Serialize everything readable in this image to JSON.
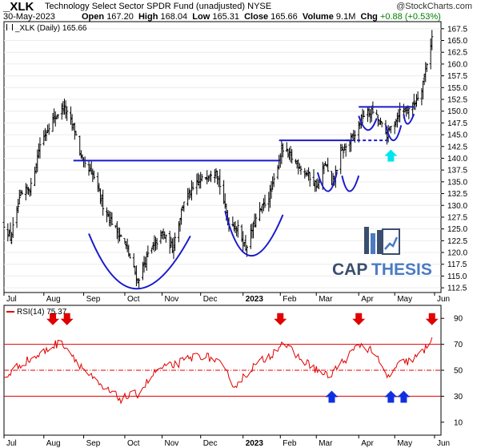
{
  "header": {
    "symbol": "_XLK",
    "fund_name": "Technology Select Sector SPDR Fund (unadjusted)",
    "exchange": "NYSE",
    "watermark": "@StockCharts.com",
    "date": "30-May-2023",
    "open_label": "Open",
    "open": "167.20",
    "high_label": "High",
    "high": "168.04",
    "low_label": "Low",
    "low": "165.31",
    "close_label": "Close",
    "close": "165.66",
    "volume_label": "Volume",
    "volume": "9.1M",
    "chg_label": "Chg",
    "chg": "+0.88 (+0.53%)"
  },
  "price_legend": "_XLK (Daily) 165.66",
  "rsi_legend": "RSI(14) 75.37",
  "logo_text": {
    "cap": "CAP",
    "thesis": "THESIS"
  },
  "colors": {
    "bars": "#000000",
    "annotation_blue": "#1a1acc",
    "rsi_line": "#e00000",
    "arrow_red": "#e00000",
    "arrow_blue": "#1030e0",
    "arrow_cyan": "#00e5f0",
    "logo_dark": "#3a4e6e",
    "logo_blue": "#4a7bc4"
  },
  "chart_data": [
    {
      "type": "ohlc",
      "series": "_XLK (Daily)",
      "x_tick_labels": [
        "Jul",
        "Aug",
        "Sep",
        "Oct",
        "Nov",
        "Dec",
        "2023",
        "Feb",
        "Mar",
        "Apr",
        "May",
        "Jun"
      ],
      "y_ticks": [
        "167.5",
        "165.0",
        "162.5",
        "160.0",
        "157.5",
        "155.0",
        "152.5",
        "150.0",
        "147.5",
        "145.0",
        "142.5",
        "140.0",
        "137.5",
        "135.0",
        "132.5",
        "130.0",
        "127.5",
        "125.0",
        "122.5",
        "120.0",
        "117.5",
        "115.0",
        "112.5"
      ],
      "ylim": [
        111.5,
        169
      ],
      "anchor_closes": [
        {
          "date": "2022-07-01",
          "close": 126
        },
        {
          "date": "2022-07-06",
          "close": 123
        },
        {
          "date": "2022-07-14",
          "close": 132
        },
        {
          "date": "2022-07-22",
          "close": 134
        },
        {
          "date": "2022-07-29",
          "close": 143
        },
        {
          "date": "2022-08-05",
          "close": 147
        },
        {
          "date": "2022-08-16",
          "close": 151
        },
        {
          "date": "2022-08-25",
          "close": 146
        },
        {
          "date": "2022-08-31",
          "close": 139
        },
        {
          "date": "2022-09-09",
          "close": 136
        },
        {
          "date": "2022-09-16",
          "close": 130
        },
        {
          "date": "2022-09-26",
          "close": 125
        },
        {
          "date": "2022-10-03",
          "close": 122
        },
        {
          "date": "2022-10-13",
          "close": 114
        },
        {
          "date": "2022-10-20",
          "close": 119
        },
        {
          "date": "2022-11-01",
          "close": 124
        },
        {
          "date": "2022-11-09",
          "close": 121
        },
        {
          "date": "2022-11-18",
          "close": 131
        },
        {
          "date": "2022-11-30",
          "close": 135
        },
        {
          "date": "2022-12-13",
          "close": 138
        },
        {
          "date": "2022-12-22",
          "close": 127
        },
        {
          "date": "2022-12-30",
          "close": 125
        },
        {
          "date": "2023-01-05",
          "close": 121
        },
        {
          "date": "2023-01-13",
          "close": 127
        },
        {
          "date": "2023-01-25",
          "close": 133
        },
        {
          "date": "2023-02-02",
          "close": 142
        },
        {
          "date": "2023-02-10",
          "close": 140
        },
        {
          "date": "2023-02-21",
          "close": 137
        },
        {
          "date": "2023-03-02",
          "close": 134
        },
        {
          "date": "2023-03-08",
          "close": 139
        },
        {
          "date": "2023-03-13",
          "close": 134
        },
        {
          "date": "2023-03-20",
          "close": 141
        },
        {
          "date": "2023-03-31",
          "close": 145
        },
        {
          "date": "2023-04-06",
          "close": 149
        },
        {
          "date": "2023-04-14",
          "close": 150
        },
        {
          "date": "2023-04-25",
          "close": 145
        },
        {
          "date": "2023-05-05",
          "close": 150
        },
        {
          "date": "2023-05-15",
          "close": 151
        },
        {
          "date": "2023-05-22",
          "close": 155
        },
        {
          "date": "2023-05-25",
          "close": 159
        },
        {
          "date": "2023-05-30",
          "close": 165.66
        }
      ]
    },
    {
      "type": "line",
      "series": "RSI(14)",
      "x_tick_labels": [
        "Jul",
        "Aug",
        "Sep",
        "Oct",
        "Nov",
        "Dec",
        "2023",
        "Feb",
        "Mar",
        "Apr",
        "May",
        "Jun"
      ],
      "y_ticks": [
        "90",
        "70",
        "50",
        "30",
        "10"
      ],
      "ylim": [
        0,
        100
      ],
      "reference_lines": [
        70,
        50,
        30
      ],
      "anchor_values": [
        {
          "date": "2022-07-01",
          "value": 44
        },
        {
          "date": "2022-07-14",
          "value": 55
        },
        {
          "date": "2022-07-29",
          "value": 62
        },
        {
          "date": "2022-08-10",
          "value": 70
        },
        {
          "date": "2022-08-16",
          "value": 71
        },
        {
          "date": "2022-08-31",
          "value": 52
        },
        {
          "date": "2022-09-13",
          "value": 38
        },
        {
          "date": "2022-09-30",
          "value": 28
        },
        {
          "date": "2022-10-13",
          "value": 32
        },
        {
          "date": "2022-10-28",
          "value": 50
        },
        {
          "date": "2022-11-10",
          "value": 54
        },
        {
          "date": "2022-11-30",
          "value": 62
        },
        {
          "date": "2022-12-13",
          "value": 58
        },
        {
          "date": "2022-12-28",
          "value": 38
        },
        {
          "date": "2023-01-10",
          "value": 52
        },
        {
          "date": "2023-01-26",
          "value": 63
        },
        {
          "date": "2023-02-02",
          "value": 72
        },
        {
          "date": "2023-02-15",
          "value": 60
        },
        {
          "date": "2023-03-02",
          "value": 50
        },
        {
          "date": "2023-03-10",
          "value": 45
        },
        {
          "date": "2023-03-20",
          "value": 55
        },
        {
          "date": "2023-04-04",
          "value": 70
        },
        {
          "date": "2023-04-14",
          "value": 65
        },
        {
          "date": "2023-04-25",
          "value": 44
        },
        {
          "date": "2023-05-05",
          "value": 55
        },
        {
          "date": "2023-05-15",
          "value": 58
        },
        {
          "date": "2023-05-24",
          "value": 65
        },
        {
          "date": "2023-05-30",
          "value": 75.37
        }
      ]
    }
  ],
  "annotations": {
    "resistance_lines": [
      {
        "from": "2022-08-24",
        "to": "2023-02-01",
        "level": 139.5
      },
      {
        "from": "2023-01-31",
        "to": "2023-03-29",
        "level": 143.8
      },
      {
        "from": "2023-04-03",
        "to": "2023-05-16",
        "level": 150.9
      }
    ],
    "dashed_lines": [
      {
        "from": "2023-03-24",
        "to": "2023-04-28",
        "level": 143.8
      }
    ],
    "price_arrows": [
      {
        "date": "2023-04-28",
        "level": 141.5,
        "direction": "up",
        "color": "cyan"
      }
    ],
    "rsi_arrows": [
      {
        "date": "2022-08-08",
        "direction": "down",
        "color": "red"
      },
      {
        "date": "2022-08-19",
        "direction": "down",
        "color": "red"
      },
      {
        "date": "2023-02-01",
        "direction": "down",
        "color": "red"
      },
      {
        "date": "2023-04-03",
        "direction": "down",
        "color": "red"
      },
      {
        "date": "2023-05-30",
        "direction": "down",
        "color": "red"
      },
      {
        "date": "2023-03-13",
        "direction": "up",
        "color": "blue"
      },
      {
        "date": "2023-04-28",
        "direction": "up",
        "color": "blue"
      },
      {
        "date": "2023-05-08",
        "direction": "up",
        "color": "blue"
      }
    ]
  }
}
